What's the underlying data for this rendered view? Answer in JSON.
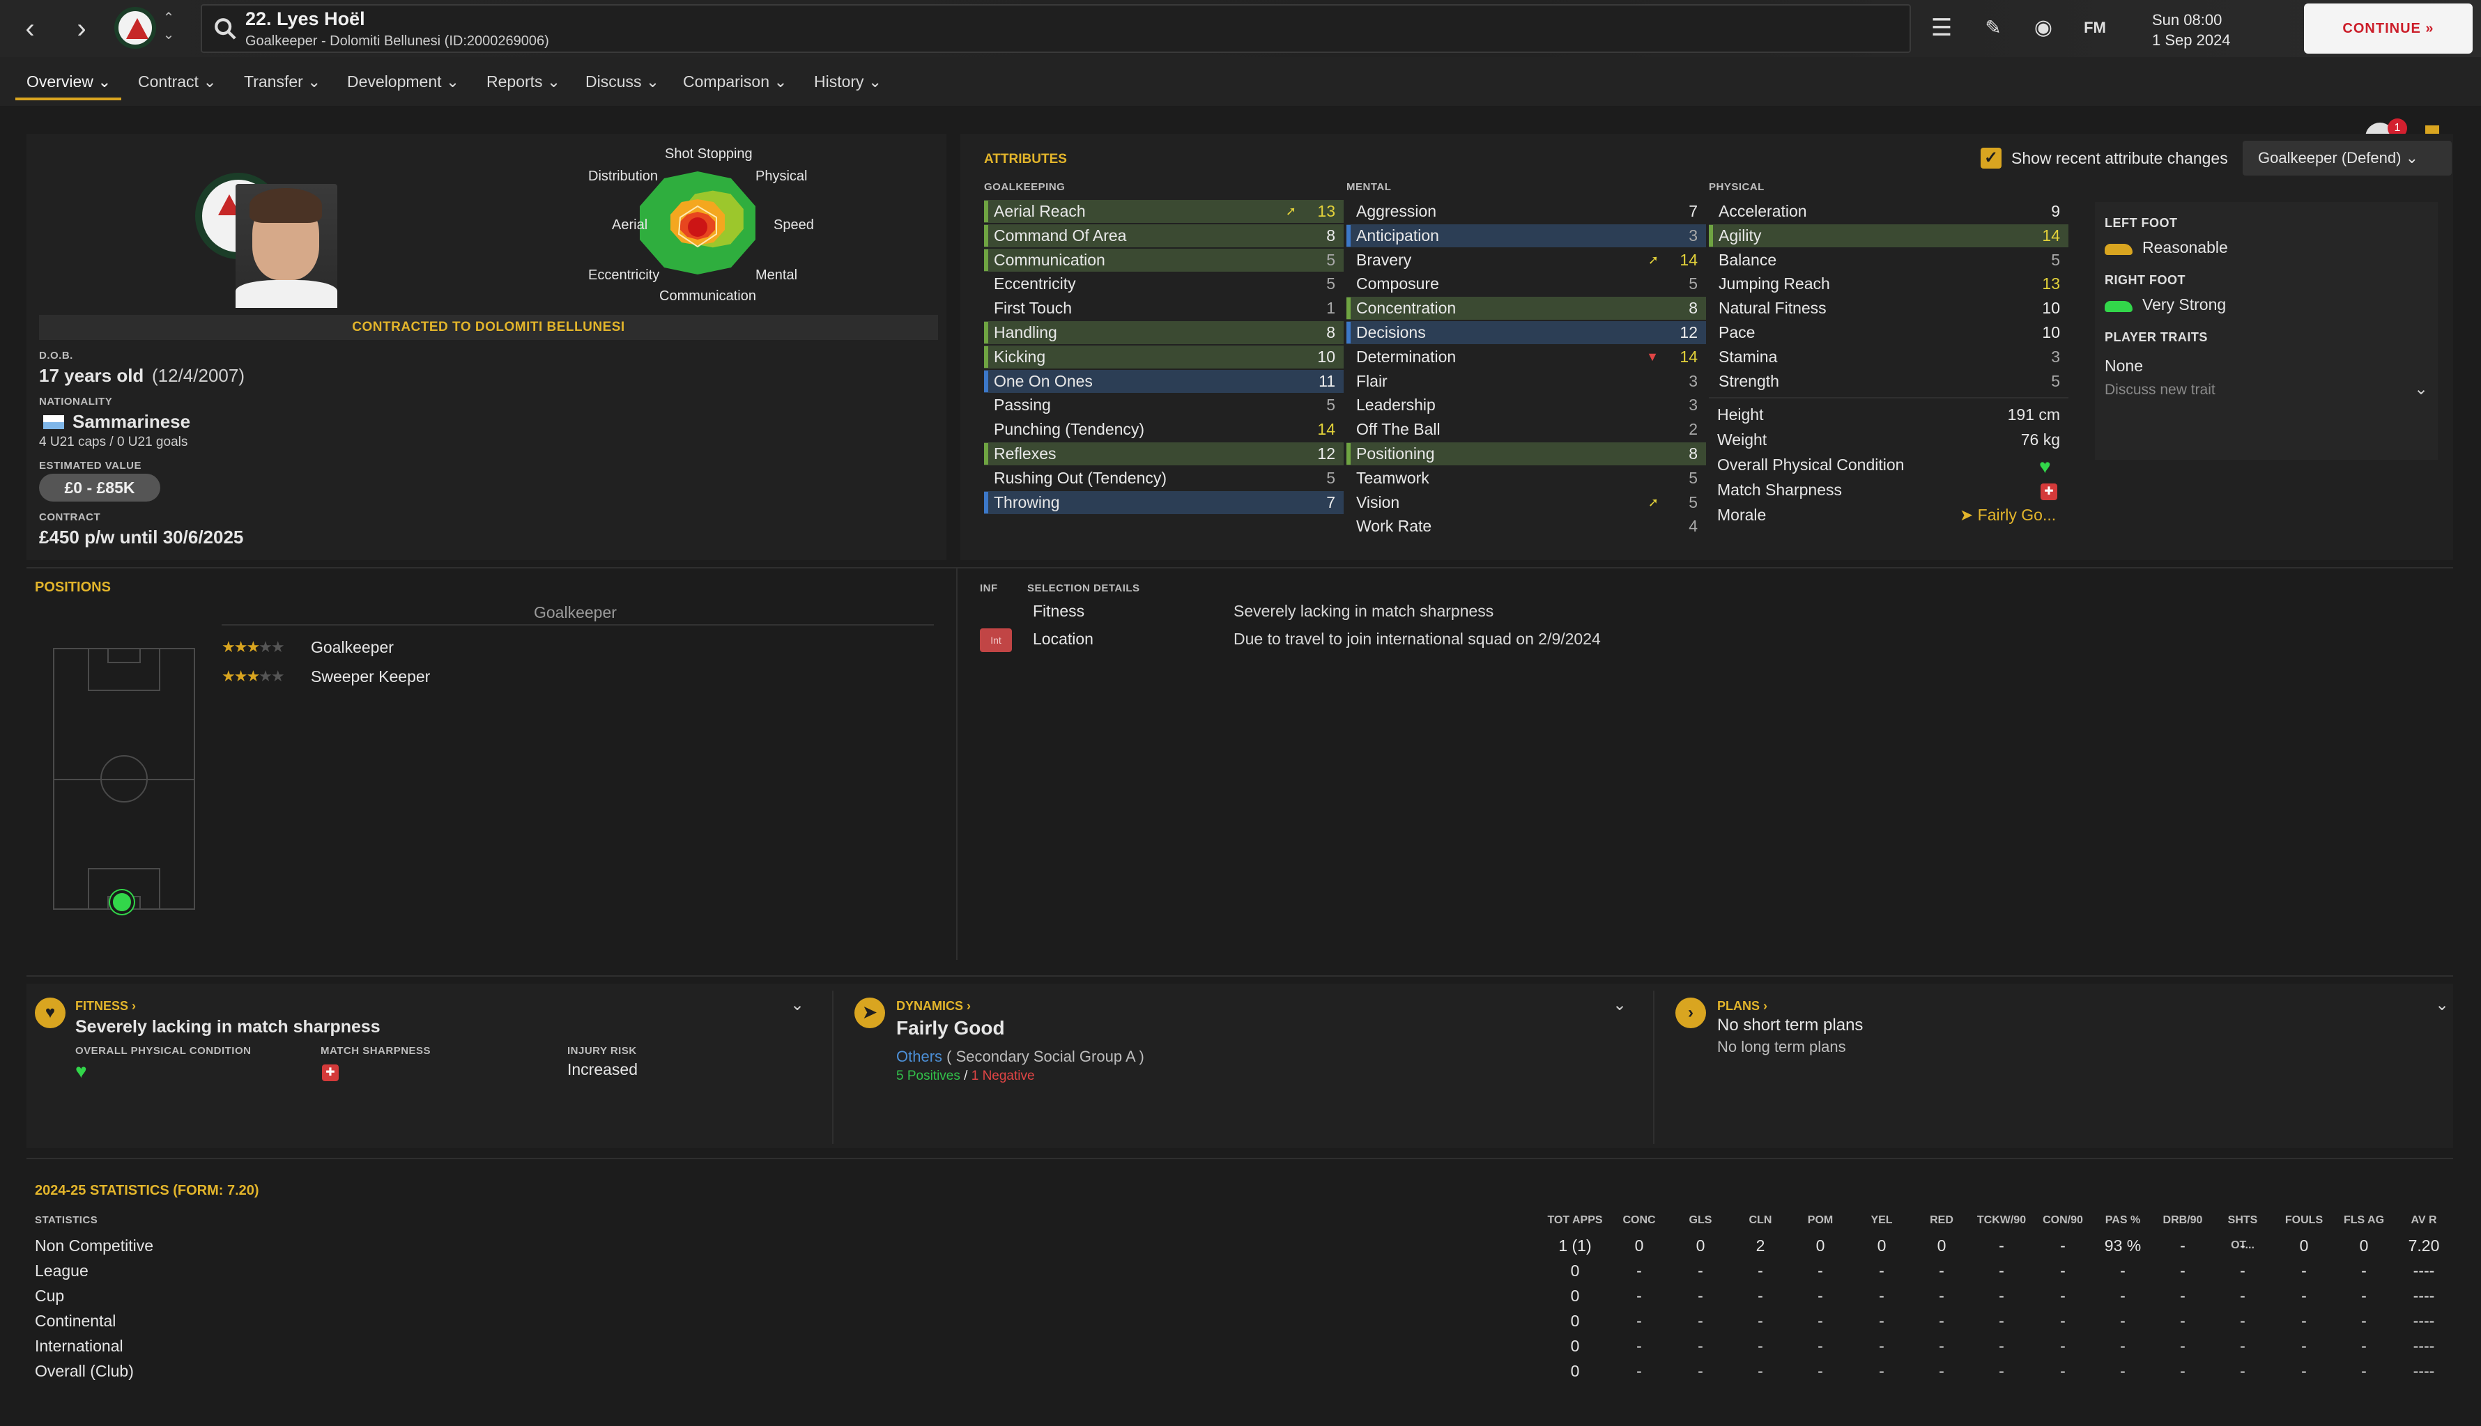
{
  "header": {
    "player_title": "22. Lyes Hoël",
    "player_subtitle": "Goalkeeper - Dolomiti Bellunesi (ID:2000269006)",
    "day_time": "Sun 08:00",
    "date": "1 Sep 2024",
    "continue_label": "CONTINUE",
    "notification_count": "1",
    "fm_label": "FM"
  },
  "menu": [
    "Overview",
    "Contract",
    "Transfer",
    "Development",
    "Reports",
    "Discuss",
    "Comparison",
    "History"
  ],
  "profile": {
    "contracted_banner": "CONTRACTED TO DOLOMITI BELLUNESI",
    "dob_label": "D.O.B.",
    "age": "17 years old",
    "dob": "(12/4/2007)",
    "nationality_label": "NATIONALITY",
    "nationality": "Sammarinese",
    "caps": "4 U21 caps / 0 U21 goals",
    "value_label": "ESTIMATED VALUE",
    "value": "£0 - £85K",
    "contract_label": "CONTRACT",
    "contract": "£450 p/w until 30/6/2025"
  },
  "radar": {
    "labels": [
      "Shot Stopping",
      "Physical",
      "Speed",
      "Mental",
      "Communication",
      "Eccentricity",
      "Aerial",
      "Distribution"
    ]
  },
  "attributes": {
    "title": "ATTRIBUTES",
    "show_recent_label": "Show recent attribute changes",
    "role_select": "Goalkeeper (Defend)",
    "goalkeeping_label": "GOALKEEPING",
    "mental_label": "MENTAL",
    "physical_label": "PHYSICAL",
    "goalkeeping": [
      {
        "name": "Aerial Reach",
        "value": "13",
        "hl": "green",
        "arrow": "up"
      },
      {
        "name": "Command Of Area",
        "value": "8",
        "hl": "green"
      },
      {
        "name": "Communication",
        "value": "5",
        "hl": "green"
      },
      {
        "name": "Eccentricity",
        "value": "5"
      },
      {
        "name": "First Touch",
        "value": "1"
      },
      {
        "name": "Handling",
        "value": "8",
        "hl": "green"
      },
      {
        "name": "Kicking",
        "value": "10",
        "hl": "green"
      },
      {
        "name": "One On Ones",
        "value": "11",
        "hl": "blue"
      },
      {
        "name": "Passing",
        "value": "5"
      },
      {
        "name": "Punching (Tendency)",
        "value": "14"
      },
      {
        "name": "Reflexes",
        "value": "12",
        "hl": "green"
      },
      {
        "name": "Rushing Out (Tendency)",
        "value": "5"
      },
      {
        "name": "Throwing",
        "value": "7",
        "hl": "blue"
      }
    ],
    "mental": [
      {
        "name": "Aggression",
        "value": "7"
      },
      {
        "name": "Anticipation",
        "value": "3",
        "hl": "blue"
      },
      {
        "name": "Bravery",
        "value": "14",
        "arrow": "up"
      },
      {
        "name": "Composure",
        "value": "5"
      },
      {
        "name": "Concentration",
        "value": "8",
        "hl": "green"
      },
      {
        "name": "Decisions",
        "value": "12",
        "hl": "blue"
      },
      {
        "name": "Determination",
        "value": "14",
        "arrow": "down"
      },
      {
        "name": "Flair",
        "value": "3"
      },
      {
        "name": "Leadership",
        "value": "3"
      },
      {
        "name": "Off The Ball",
        "value": "2"
      },
      {
        "name": "Positioning",
        "value": "8",
        "hl": "green"
      },
      {
        "name": "Teamwork",
        "value": "5"
      },
      {
        "name": "Vision",
        "value": "5",
        "arrow": "up"
      },
      {
        "name": "Work Rate",
        "value": "4"
      }
    ],
    "physical": [
      {
        "name": "Acceleration",
        "value": "9"
      },
      {
        "name": "Agility",
        "value": "14",
        "hl": "green"
      },
      {
        "name": "Balance",
        "value": "5"
      },
      {
        "name": "Jumping Reach",
        "value": "13"
      },
      {
        "name": "Natural Fitness",
        "value": "10"
      },
      {
        "name": "Pace",
        "value": "10"
      },
      {
        "name": "Stamina",
        "value": "3"
      },
      {
        "name": "Strength",
        "value": "5"
      }
    ],
    "extra": {
      "height_label": "Height",
      "height": "191 cm",
      "weight_label": "Weight",
      "weight": "76 kg",
      "opc_label": "Overall Physical Condition",
      "sharp_label": "Match Sharpness",
      "morale_label": "Morale",
      "morale": "Fairly Go..."
    }
  },
  "feet": {
    "left_label": "LEFT FOOT",
    "left": "Reasonable",
    "right_label": "RIGHT FOOT",
    "right": "Very Strong",
    "traits_label": "PLAYER TRAITS",
    "traits": "None",
    "discuss_trait": "Discuss new trait"
  },
  "positions": {
    "title": "POSITIONS",
    "main": "Goalkeeper",
    "list": [
      {
        "name": "Goalkeeper"
      },
      {
        "name": "Sweeper Keeper"
      }
    ]
  },
  "selection": {
    "inf_label": "INF",
    "title": "SELECTION DETAILS",
    "rows": [
      {
        "label": "Fitness",
        "detail": "Severely lacking in match sharpness"
      },
      {
        "label": "Location",
        "detail": "Due to travel to join international squad on 2/9/2024",
        "badge": "Int"
      }
    ]
  },
  "fitness": {
    "title": "FITNESS",
    "headline": "Severely lacking in match sharpness",
    "opc_label": "OVERALL PHYSICAL CONDITION",
    "sharp_label": "MATCH SHARPNESS",
    "injury_label": "INJURY RISK",
    "injury": "Increased"
  },
  "dynamics": {
    "title": "DYNAMICS",
    "headline": "Fairly Good",
    "group": "Others",
    "group_sub": "( Secondary Social Group A )",
    "positives": "5 Positives",
    "sep": "/",
    "negatives": "1 Negative"
  },
  "plans": {
    "title": "PLANS",
    "short": "No short term plans",
    "long": "No long term plans"
  },
  "stats": {
    "title": "2024-25 STATISTICS (FORM: 7.20)",
    "label": "STATISTICS",
    "columns": [
      "TOT APPS",
      "CONC",
      "GLS",
      "CLN",
      "POM",
      "YEL",
      "RED",
      "TCKW/90",
      "CON/90",
      "PAS %",
      "DRB/90",
      "SHTS OT...",
      "FOULS",
      "FLS AG",
      "AV R"
    ],
    "rows": [
      {
        "name": "Non Competitive",
        "cells": [
          "1 (1)",
          "0",
          "0",
          "2",
          "0",
          "0",
          "0",
          "-",
          "-",
          "93 %",
          "-",
          "-",
          "0",
          "0",
          "7.20"
        ]
      },
      {
        "name": "League",
        "cells": [
          "0",
          "-",
          "-",
          "-",
          "-",
          "-",
          "-",
          "-",
          "-",
          "-",
          "-",
          "-",
          "-",
          "-",
          "----"
        ]
      },
      {
        "name": "Cup",
        "cells": [
          "0",
          "-",
          "-",
          "-",
          "-",
          "-",
          "-",
          "-",
          "-",
          "-",
          "-",
          "-",
          "-",
          "-",
          "----"
        ]
      },
      {
        "name": "Continental",
        "cells": [
          "0",
          "-",
          "-",
          "-",
          "-",
          "-",
          "-",
          "-",
          "-",
          "-",
          "-",
          "-",
          "-",
          "-",
          "----"
        ]
      },
      {
        "name": "International",
        "cells": [
          "0",
          "-",
          "-",
          "-",
          "-",
          "-",
          "-",
          "-",
          "-",
          "-",
          "-",
          "-",
          "-",
          "-",
          "----"
        ]
      },
      {
        "name": "Overall (Club)",
        "cells": [
          "0",
          "-",
          "-",
          "-",
          "-",
          "-",
          "-",
          "-",
          "-",
          "-",
          "-",
          "-",
          "-",
          "-",
          "----"
        ]
      }
    ]
  },
  "colors": {
    "accent": "#d9a520",
    "green_row": "#3b4a32",
    "blue_row": "#2c3e55",
    "continue_text": "#cc1e2a"
  }
}
